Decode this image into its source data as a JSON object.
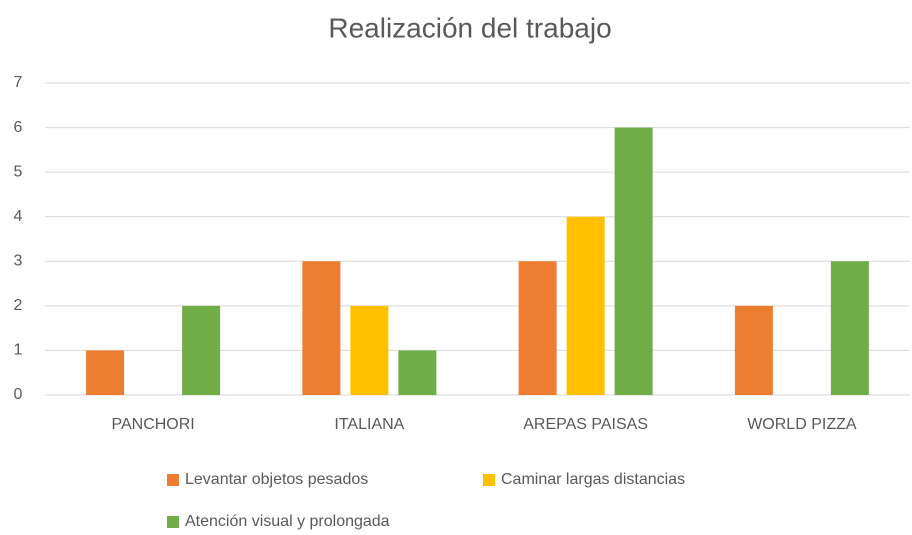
{
  "chart_data": {
    "type": "bar",
    "title": "Realización del trabajo",
    "categories": [
      "PANCHORI",
      "ITALIANA",
      "AREPAS PAISAS",
      "WORLD PIZZA"
    ],
    "series": [
      {
        "name": "Levantar objetos pesados",
        "color": "#ed7d31",
        "values": [
          1,
          3,
          3,
          2
        ]
      },
      {
        "name": "Caminar largas distancias",
        "color": "#ffc000",
        "values": [
          0,
          2,
          4,
          0
        ]
      },
      {
        "name": "Atención visual y prolongada",
        "color": "#70ad47",
        "values": [
          2,
          1,
          6,
          3
        ]
      }
    ],
    "ylim": [
      0,
      7
    ],
    "yticks": [
      0,
      1,
      2,
      3,
      4,
      5,
      6,
      7
    ],
    "grid": true,
    "legend": "bottom"
  }
}
